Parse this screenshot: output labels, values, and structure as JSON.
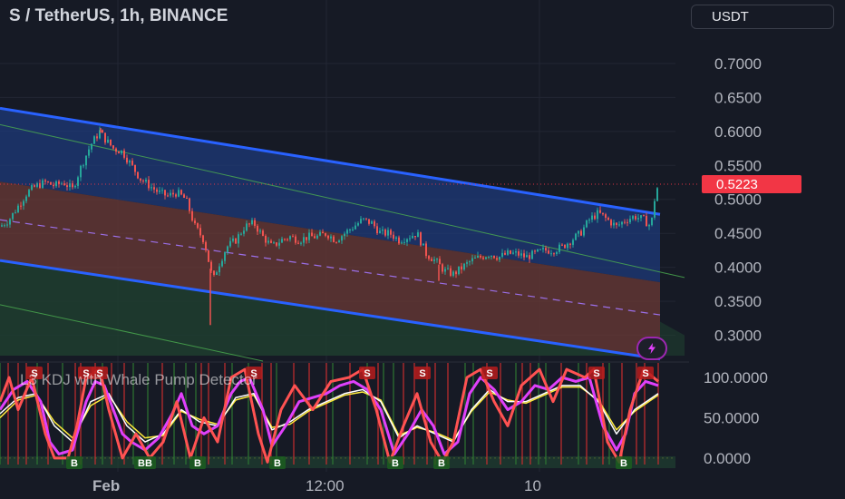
{
  "header": {
    "title": "S / TetherUS, 1h, BINANCE",
    "currency": "USDT"
  },
  "indicator": {
    "title": "L3 KDJ with Whale Pump Detector"
  },
  "colors": {
    "background": "#161a25",
    "up_candle": "#26a69a",
    "down_candle": "#ef5350",
    "channel_line": "#2962ff",
    "upper_fill": "#1e3a7a",
    "middle_fill": "#6b3a35",
    "lower_fill": "#1f4030",
    "last_price_tag": "#f23645",
    "k_line": "#e040fb",
    "d_line": "#ffffff",
    "j_line": "#ffeb3b",
    "whale_line": "#ff5252"
  },
  "icons": {
    "flash": "lightning-bolt-icon"
  },
  "chart_data": [
    {
      "type": "candlestick",
      "title": "S / TetherUS, 1h, BINANCE",
      "ylim": [
        0.27,
        0.74
      ],
      "y_ticks": [
        "0.7000",
        "0.6500",
        "0.6000",
        "0.5500",
        "0.5000",
        "0.4500",
        "0.4000",
        "0.3500",
        "0.3000"
      ],
      "x_ticks": [
        "Feb",
        "12:00",
        "10"
      ],
      "last_price": "0.5223",
      "close_path": [
        [
          0,
          0.46
        ],
        [
          10,
          0.47
        ],
        [
          20,
          0.49
        ],
        [
          30,
          0.51
        ],
        [
          40,
          0.52
        ],
        [
          50,
          0.525
        ],
        [
          60,
          0.52
        ],
        [
          70,
          0.525
        ],
        [
          80,
          0.515
        ],
        [
          90,
          0.55
        ],
        [
          100,
          0.58
        ],
        [
          110,
          0.6
        ],
        [
          115,
          0.59
        ],
        [
          125,
          0.575
        ],
        [
          135,
          0.57
        ],
        [
          145,
          0.55
        ],
        [
          155,
          0.53
        ],
        [
          165,
          0.52
        ],
        [
          175,
          0.51
        ],
        [
          185,
          0.505
        ],
        [
          195,
          0.51
        ],
        [
          205,
          0.5
        ],
        [
          215,
          0.46
        ],
        [
          225,
          0.44
        ],
        [
          230,
          0.41
        ],
        [
          235,
          0.38
        ],
        [
          240,
          0.4
        ],
        [
          250,
          0.43
        ],
        [
          260,
          0.44
        ],
        [
          270,
          0.46
        ],
        [
          280,
          0.465
        ],
        [
          290,
          0.445
        ],
        [
          300,
          0.43
        ],
        [
          310,
          0.44
        ],
        [
          320,
          0.445
        ],
        [
          330,
          0.44
        ],
        [
          340,
          0.445
        ],
        [
          350,
          0.445
        ],
        [
          360,
          0.45
        ],
        [
          370,
          0.44
        ],
        [
          380,
          0.45
        ],
        [
          390,
          0.46
        ],
        [
          400,
          0.47
        ],
        [
          410,
          0.465
        ],
        [
          420,
          0.45
        ],
        [
          430,
          0.45
        ],
        [
          440,
          0.44
        ],
        [
          450,
          0.445
        ],
        [
          460,
          0.45
        ],
        [
          470,
          0.42
        ],
        [
          480,
          0.41
        ],
        [
          490,
          0.395
        ],
        [
          500,
          0.39
        ],
        [
          510,
          0.4
        ],
        [
          520,
          0.41
        ],
        [
          530,
          0.415
        ],
        [
          540,
          0.42
        ],
        [
          550,
          0.415
        ],
        [
          560,
          0.42
        ],
        [
          570,
          0.42
        ],
        [
          580,
          0.415
        ],
        [
          590,
          0.42
        ],
        [
          600,
          0.425
        ],
        [
          610,
          0.425
        ],
        [
          620,
          0.43
        ],
        [
          630,
          0.44
        ],
        [
          640,
          0.45
        ],
        [
          650,
          0.47
        ],
        [
          660,
          0.48
        ],
        [
          670,
          0.47
        ],
        [
          680,
          0.46
        ],
        [
          690,
          0.47
        ],
        [
          700,
          0.475
        ],
        [
          710,
          0.47
        ],
        [
          718,
          0.46
        ],
        [
          722,
          0.5
        ],
        [
          726,
          0.5223
        ]
      ],
      "wick_extremes": [
        {
          "x": 111,
          "high": 0.605
        },
        {
          "x": 232,
          "low": 0.315
        },
        {
          "x": 484,
          "low": 0.38
        }
      ],
      "channel": {
        "upper": [
          [
            0,
            0.634
          ],
          [
            728,
            0.478
          ]
        ],
        "middle_high": [
          [
            0,
            0.526
          ],
          [
            728,
            0.378
          ]
        ],
        "mid_dashed": [
          [
            0,
            0.47
          ],
          [
            728,
            0.33
          ]
        ],
        "lower": [
          [
            0,
            0.41
          ],
          [
            728,
            0.265
          ]
        ]
      }
    },
    {
      "type": "line",
      "title": "L3 KDJ with Whale Pump Detector",
      "ylim": [
        -8,
        118
      ],
      "y_ticks": [
        "100.0000",
        "50.0000",
        "0.0000"
      ],
      "series": [
        {
          "name": "K",
          "values": [
            [
              0,
              60
            ],
            [
              15,
              85
            ],
            [
              30,
              95
            ],
            [
              45,
              70
            ],
            [
              55,
              20
            ],
            [
              65,
              5
            ],
            [
              80,
              10
            ],
            [
              95,
              70
            ],
            [
              105,
              95
            ],
            [
              115,
              90
            ],
            [
              125,
              60
            ],
            [
              135,
              30
            ],
            [
              145,
              20
            ],
            [
              160,
              10
            ],
            [
              175,
              25
            ],
            [
              190,
              55
            ],
            [
              200,
              80
            ],
            [
              212,
              40
            ],
            [
              225,
              30
            ],
            [
              240,
              40
            ],
            [
              255,
              80
            ],
            [
              265,
              95
            ],
            [
              275,
              100
            ],
            [
              290,
              60
            ],
            [
              300,
              15
            ],
            [
              315,
              40
            ],
            [
              330,
              70
            ],
            [
              345,
              75
            ],
            [
              360,
              80
            ],
            [
              375,
              90
            ],
            [
              390,
              95
            ],
            [
              405,
              85
            ],
            [
              420,
              60
            ],
            [
              435,
              5
            ],
            [
              450,
              30
            ],
            [
              465,
              60
            ],
            [
              478,
              40
            ],
            [
              490,
              5
            ],
            [
              505,
              20
            ],
            [
              518,
              80
            ],
            [
              530,
              100
            ],
            [
              545,
              85
            ],
            [
              560,
              60
            ],
            [
              575,
              70
            ],
            [
              590,
              90
            ],
            [
              605,
              85
            ],
            [
              620,
              100
            ],
            [
              635,
              95
            ],
            [
              650,
              100
            ],
            [
              665,
              40
            ],
            [
              680,
              10
            ],
            [
              690,
              30
            ],
            [
              700,
              80
            ],
            [
              712,
              95
            ],
            [
              726,
              90
            ]
          ]
        },
        {
          "name": "D",
          "values": [
            [
              0,
              55
            ],
            [
              20,
              75
            ],
            [
              40,
              80
            ],
            [
              60,
              40
            ],
            [
              80,
              20
            ],
            [
              100,
              70
            ],
            [
              120,
              80
            ],
            [
              140,
              40
            ],
            [
              160,
              20
            ],
            [
              180,
              30
            ],
            [
              200,
              60
            ],
            [
              220,
              45
            ],
            [
              240,
              40
            ],
            [
              260,
              75
            ],
            [
              280,
              80
            ],
            [
              300,
              35
            ],
            [
              320,
              45
            ],
            [
              340,
              60
            ],
            [
              360,
              70
            ],
            [
              380,
              80
            ],
            [
              400,
              85
            ],
            [
              420,
              70
            ],
            [
              440,
              25
            ],
            [
              460,
              40
            ],
            [
              480,
              30
            ],
            [
              500,
              20
            ],
            [
              520,
              60
            ],
            [
              540,
              85
            ],
            [
              560,
              70
            ],
            [
              580,
              70
            ],
            [
              600,
              80
            ],
            [
              620,
              90
            ],
            [
              640,
              90
            ],
            [
              660,
              70
            ],
            [
              680,
              30
            ],
            [
              700,
              60
            ],
            [
              726,
              80
            ]
          ]
        },
        {
          "name": "J",
          "values": [
            [
              0,
              50
            ],
            [
              20,
              72
            ],
            [
              40,
              78
            ],
            [
              60,
              45
            ],
            [
              80,
              25
            ],
            [
              100,
              65
            ],
            [
              120,
              78
            ],
            [
              140,
              45
            ],
            [
              160,
              25
            ],
            [
              180,
              28
            ],
            [
              200,
              58
            ],
            [
              220,
              48
            ],
            [
              240,
              42
            ],
            [
              260,
              72
            ],
            [
              280,
              78
            ],
            [
              300,
              38
            ],
            [
              320,
              42
            ],
            [
              340,
              58
            ],
            [
              360,
              68
            ],
            [
              380,
              78
            ],
            [
              400,
              82
            ],
            [
              420,
              72
            ],
            [
              440,
              28
            ],
            [
              460,
              38
            ],
            [
              480,
              32
            ],
            [
              500,
              22
            ],
            [
              520,
              58
            ],
            [
              540,
              82
            ],
            [
              560,
              72
            ],
            [
              580,
              68
            ],
            [
              600,
              78
            ],
            [
              620,
              88
            ],
            [
              640,
              88
            ],
            [
              660,
              72
            ],
            [
              680,
              35
            ],
            [
              700,
              58
            ],
            [
              726,
              78
            ]
          ]
        },
        {
          "name": "Whale",
          "values": [
            [
              0,
              70
            ],
            [
              10,
              100
            ],
            [
              20,
              60
            ],
            [
              35,
              100
            ],
            [
              50,
              30
            ],
            [
              60,
              0
            ],
            [
              75,
              0
            ],
            [
              85,
              40
            ],
            [
              95,
              100
            ],
            [
              110,
              110
            ],
            [
              120,
              60
            ],
            [
              135,
              0
            ],
            [
              150,
              30
            ],
            [
              165,
              0
            ],
            [
              180,
              20
            ],
            [
              195,
              70
            ],
            [
              210,
              0
            ],
            [
              225,
              50
            ],
            [
              240,
              20
            ],
            [
              255,
              100
            ],
            [
              270,
              110
            ],
            [
              285,
              30
            ],
            [
              295,
              -5
            ],
            [
              310,
              60
            ],
            [
              325,
              90
            ],
            [
              345,
              60
            ],
            [
              365,
              95
            ],
            [
              385,
              100
            ],
            [
              400,
              110
            ],
            [
              415,
              60
            ],
            [
              430,
              -5
            ],
            [
              445,
              40
            ],
            [
              460,
              80
            ],
            [
              475,
              20
            ],
            [
              488,
              -5
            ],
            [
              500,
              20
            ],
            [
              515,
              100
            ],
            [
              530,
              110
            ],
            [
              545,
              70
            ],
            [
              560,
              40
            ],
            [
              575,
              90
            ],
            [
              595,
              110
            ],
            [
              610,
              70
            ],
            [
              625,
              110
            ],
            [
              645,
              100
            ],
            [
              655,
              110
            ],
            [
              670,
              20
            ],
            [
              683,
              -5
            ],
            [
              695,
              60
            ],
            [
              710,
              110
            ],
            [
              726,
              95
            ]
          ]
        }
      ],
      "signals": [
        {
          "label": "S",
          "x": 38
        },
        {
          "label": "S",
          "x": 95
        },
        {
          "label": "S",
          "x": 110
        },
        {
          "label": "S",
          "x": 280
        },
        {
          "label": "S",
          "x": 405
        },
        {
          "label": "S",
          "x": 466
        },
        {
          "label": "S",
          "x": 540
        },
        {
          "label": "S",
          "x": 658
        },
        {
          "label": "S",
          "x": 712
        },
        {
          "label": "B",
          "x": 82
        },
        {
          "label": "BB",
          "x": 160
        },
        {
          "label": "B",
          "x": 218
        },
        {
          "label": "B",
          "x": 306
        },
        {
          "label": "B",
          "x": 436
        },
        {
          "label": "B",
          "x": 487
        },
        {
          "label": "B",
          "x": 688
        }
      ]
    }
  ]
}
